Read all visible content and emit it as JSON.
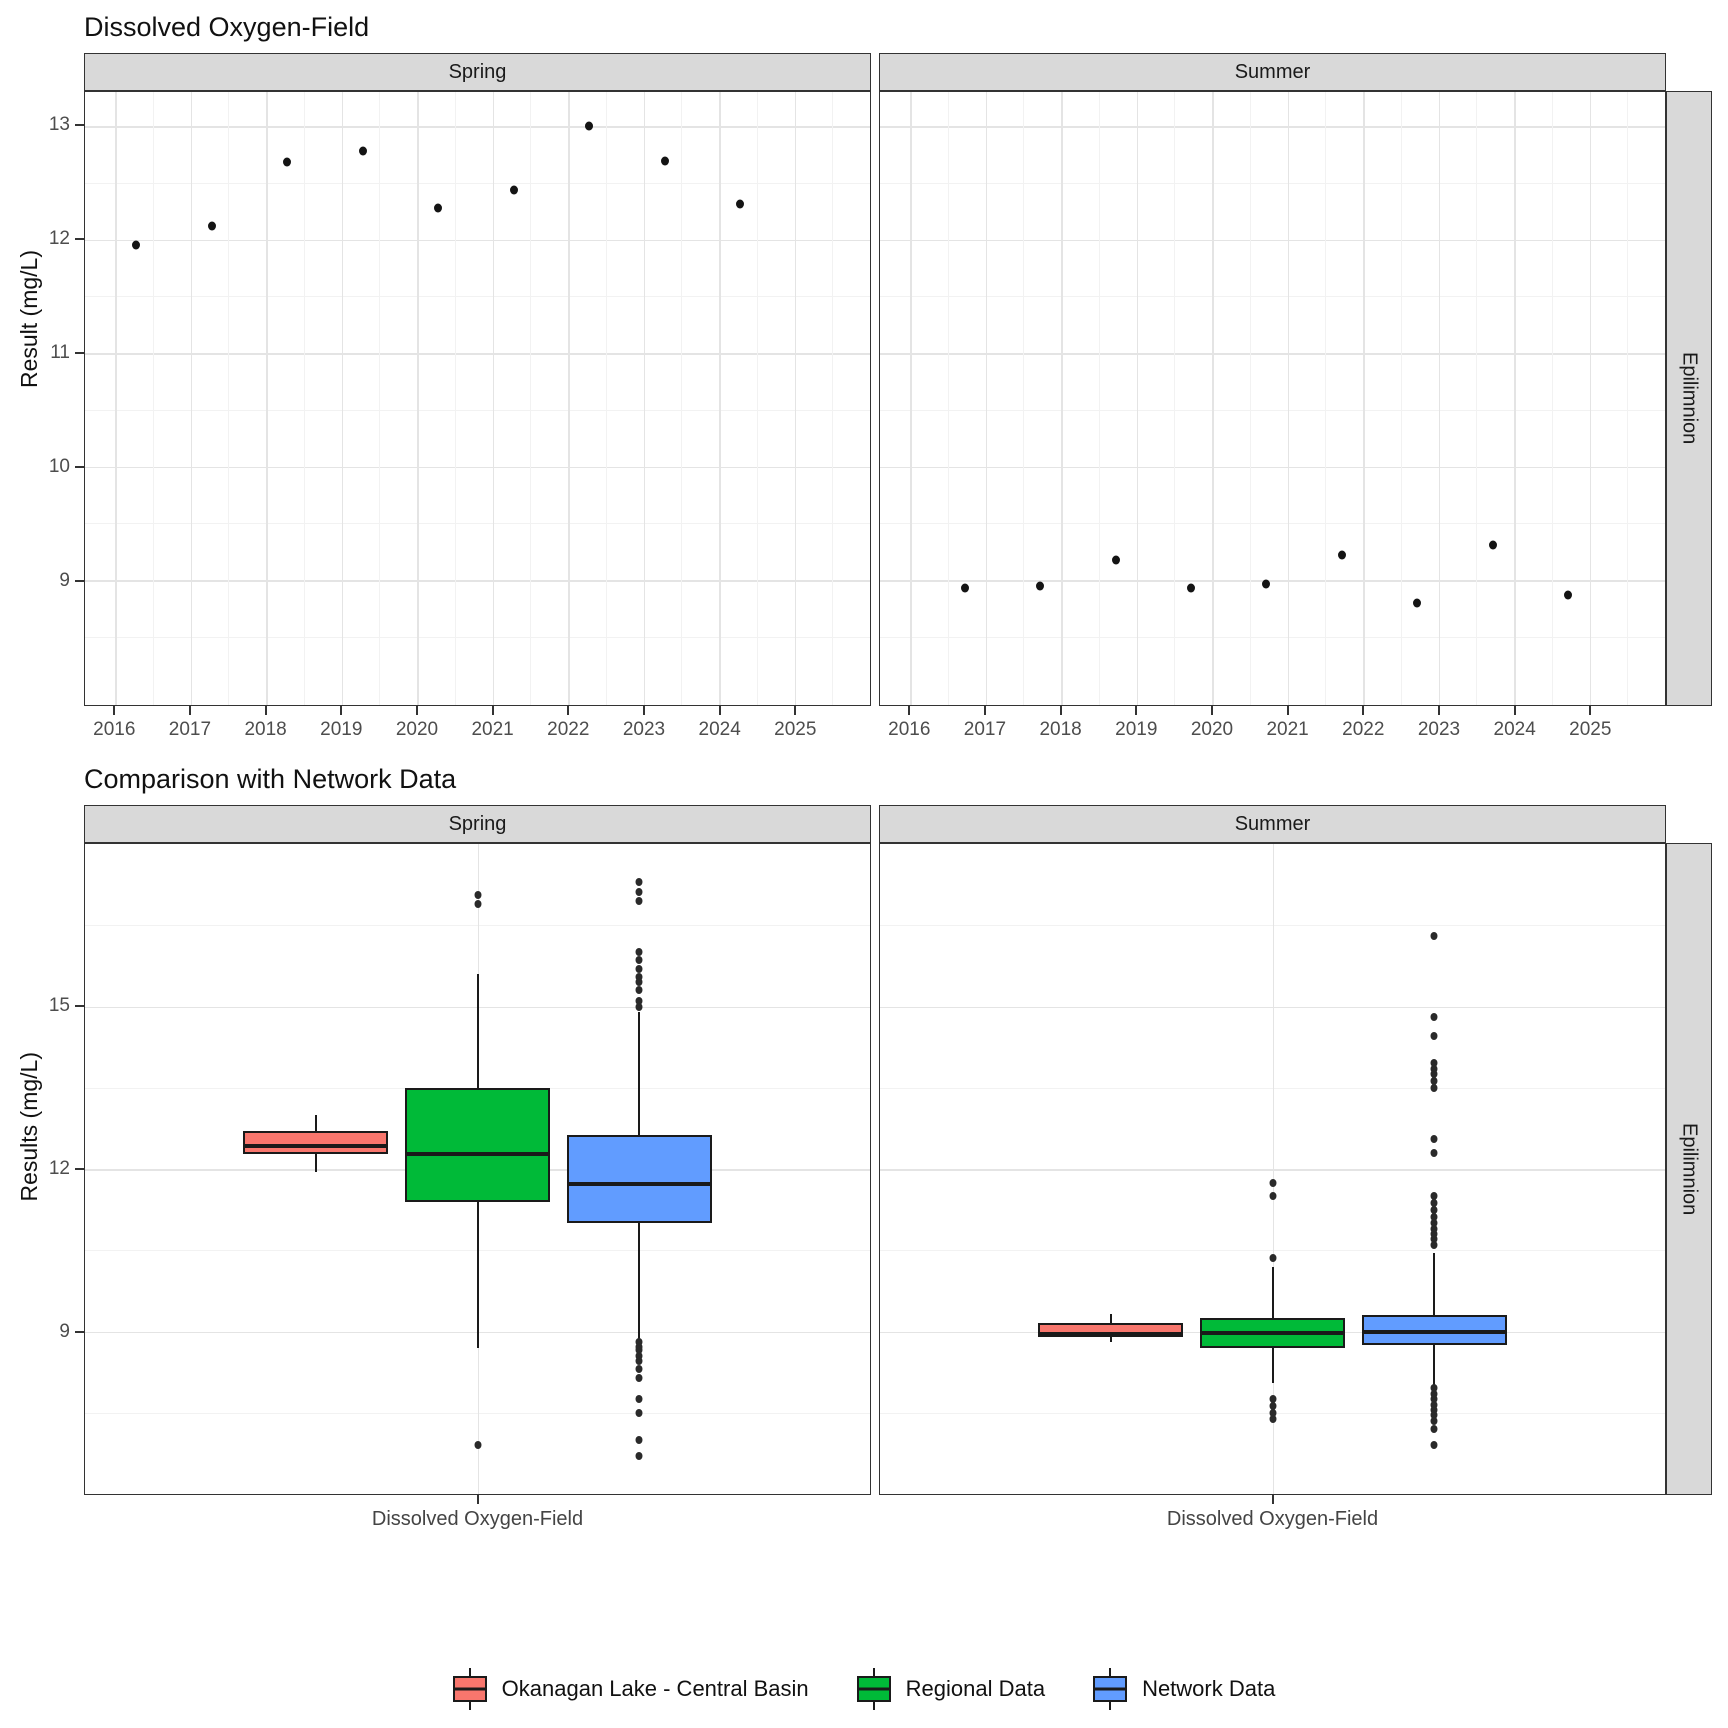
{
  "page": {
    "background": "#FFFFFF"
  },
  "colors": {
    "strip_bg": "#D9D9D9",
    "panel_border": "#333333",
    "grid_major": "#E4E4E4",
    "grid_minor": "#F2F2F2",
    "tick_text": "#4D4D4D",
    "point": "#141414",
    "okanagan": "#F8766D",
    "regional": "#00BA38",
    "network": "#619CFF"
  },
  "legend": {
    "items": [
      {
        "label": "Okanagan Lake - Central Basin",
        "color": "#F8766D"
      },
      {
        "label": "Regional Data",
        "color": "#00BA38"
      },
      {
        "label": "Network Data",
        "color": "#619CFF"
      }
    ]
  },
  "chart_data": [
    {
      "type": "scatter",
      "title": "Dissolved Oxygen-Field",
      "ylabel": "Result (mg/L)",
      "facet_row_label": "Epilimnion",
      "grid": true,
      "x_domain": [
        2015.6,
        2026.0
      ],
      "x_ticks": [
        2016,
        2017,
        2018,
        2019,
        2020,
        2021,
        2022,
        2023,
        2024,
        2025
      ],
      "y_domain": [
        7.9,
        13.3
      ],
      "y_ticks": [
        9,
        10,
        11,
        12,
        13
      ],
      "y_minor": [
        8.5,
        9.5,
        10.5,
        11.5,
        12.5
      ],
      "panels": [
        {
          "label": "Spring",
          "points": [
            [
              2016.28,
              11.95
            ],
            [
              2017.28,
              12.12
            ],
            [
              2018.28,
              12.68
            ],
            [
              2019.28,
              12.78
            ],
            [
              2020.28,
              12.28
            ],
            [
              2021.28,
              12.44
            ],
            [
              2022.28,
              13.0
            ],
            [
              2023.28,
              12.69
            ],
            [
              2024.28,
              12.31
            ]
          ]
        },
        {
          "label": "Summer",
          "points": [
            [
              2016.72,
              8.93
            ],
            [
              2017.72,
              8.95
            ],
            [
              2018.72,
              9.18
            ],
            [
              2019.72,
              8.93
            ],
            [
              2020.72,
              8.97
            ],
            [
              2021.72,
              9.22
            ],
            [
              2022.72,
              8.8
            ],
            [
              2023.72,
              9.31
            ],
            [
              2024.72,
              8.87
            ]
          ]
        }
      ]
    },
    {
      "type": "boxplot",
      "title": "Comparison with Network Data",
      "ylabel": "Results (mg/L)",
      "x_category": "Dissolved Oxygen-Field",
      "facet_row_label": "Epilimnion",
      "grid": true,
      "y_domain": [
        6.0,
        18.0
      ],
      "y_ticks": [
        9,
        12,
        15
      ],
      "y_minor": [
        7.5,
        10.5,
        13.5,
        16.5
      ],
      "positions": [
        0.294,
        0.5,
        0.706
      ],
      "box_width": 0.185,
      "panels": [
        {
          "label": "Spring",
          "boxes": [
            {
              "series": "Okanagan Lake - Central Basin",
              "color": "#F8766D",
              "whisker_low": 11.95,
              "q1": 12.28,
              "median": 12.43,
              "q3": 12.7,
              "whisker_high": 13.0,
              "outliers": []
            },
            {
              "series": "Regional Data",
              "color": "#00BA38",
              "whisker_low": 8.7,
              "q1": 11.4,
              "median": 12.28,
              "q3": 13.5,
              "whisker_high": 15.6,
              "outliers": [
                17.05,
                16.9,
                6.9
              ]
            },
            {
              "series": "Network Data",
              "color": "#619CFF",
              "whisker_low": 8.85,
              "q1": 11.0,
              "median": 11.73,
              "q3": 12.62,
              "whisker_high": 14.9,
              "outliers": [
                17.3,
                17.12,
                16.95,
                16.0,
                15.85,
                15.7,
                15.55,
                15.45,
                15.3,
                15.1,
                15.0,
                8.8,
                8.72,
                8.65,
                8.55,
                8.45,
                8.3,
                8.15,
                7.75,
                7.5,
                7.0,
                6.7
              ]
            }
          ]
        },
        {
          "label": "Summer",
          "boxes": [
            {
              "series": "Okanagan Lake - Central Basin",
              "color": "#F8766D",
              "whisker_low": 8.8,
              "q1": 8.9,
              "median": 8.95,
              "q3": 9.15,
              "whisker_high": 9.32,
              "outliers": []
            },
            {
              "series": "Regional Data",
              "color": "#00BA38",
              "whisker_low": 8.05,
              "q1": 8.7,
              "median": 8.97,
              "q3": 9.25,
              "whisker_high": 10.2,
              "outliers": [
                11.75,
                11.5,
                10.35,
                7.75,
                7.62,
                7.5,
                7.38
              ]
            },
            {
              "series": "Network Data",
              "color": "#619CFF",
              "whisker_low": 8.0,
              "q1": 8.75,
              "median": 9.0,
              "q3": 9.3,
              "whisker_high": 10.45,
              "outliers": [
                16.3,
                14.8,
                14.45,
                13.95,
                13.85,
                13.75,
                13.62,
                13.5,
                12.55,
                12.3,
                11.5,
                11.38,
                11.25,
                11.12,
                11.0,
                10.9,
                10.8,
                10.7,
                10.6,
                7.95,
                7.85,
                7.75,
                7.65,
                7.55,
                7.45,
                7.35,
                7.2,
                6.9
              ]
            }
          ]
        }
      ]
    }
  ]
}
